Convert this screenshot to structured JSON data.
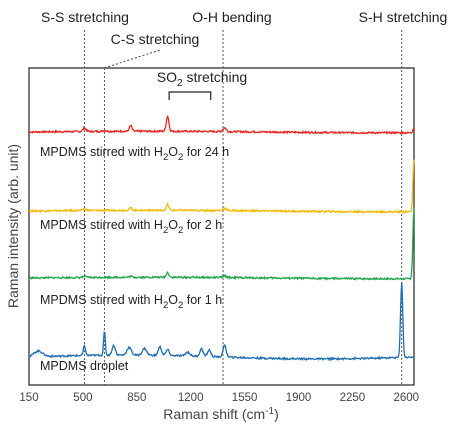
{
  "chart_data": {
    "type": "line",
    "xlabel_main": "Raman shift (cm",
    "xlabel_sup": "-1",
    "xlabel_end": ")",
    "ylabel": "Raman intensity (arb. unit)",
    "xlim": [
      150,
      2650
    ],
    "xticks": [
      "150",
      "500",
      "850",
      "1200",
      "1550",
      "1900",
      "2250",
      "2600"
    ],
    "xtick_values": [
      150,
      500,
      850,
      1200,
      1550,
      1900,
      2250,
      2600
    ],
    "annotations": [
      {
        "key": "ss",
        "text": "S-S stretching",
        "x": 510
      },
      {
        "key": "cs",
        "text": "C-S stretching",
        "x": 640
      },
      {
        "key": "oh",
        "text": "O-H bending",
        "x": 1410
      },
      {
        "key": "sh",
        "text": "S-H stretching",
        "x": 2570
      }
    ],
    "so2": {
      "main": "SO",
      "sub": "2",
      "end": " stretching",
      "range": [
        1060,
        1330
      ]
    },
    "series": [
      {
        "key": "h24",
        "label_main": "MPDMS stirred with H",
        "label_sub": "2",
        "label_mid": "O",
        "label_sub2": "2",
        "label_end": " for 24 h",
        "color": "#e8221e",
        "baseline": 0.13,
        "peaks": [
          [
            510,
            0.035,
            15
          ],
          [
            640,
            0.01,
            15
          ],
          [
            810,
            0.06,
            12
          ],
          [
            1050,
            0.16,
            12
          ],
          [
            1420,
            0.04,
            15
          ],
          [
            2650,
            0.05,
            10
          ]
        ]
      },
      {
        "key": "h2",
        "label_main": "MPDMS stirred with H",
        "label_sub": "2",
        "label_mid": "O",
        "label_sub2": "2",
        "label_end": " for 2 h",
        "color": "#f5b800",
        "baseline": 0.03,
        "peaks": [
          [
            510,
            0.015,
            15
          ],
          [
            810,
            0.025,
            12
          ],
          [
            1050,
            0.06,
            12
          ],
          [
            1420,
            0.025,
            15
          ],
          [
            2650,
            0.55,
            10
          ]
        ]
      },
      {
        "key": "h1",
        "label_main": "MPDMS stirred with H",
        "label_sub": "2",
        "label_mid": "O",
        "label_sub2": "2",
        "label_end": " for 1 h",
        "color": "#1fa54a",
        "baseline": 0.02,
        "peaks": [
          [
            510,
            0.01,
            15
          ],
          [
            810,
            0.01,
            12
          ],
          [
            1050,
            0.05,
            12
          ],
          [
            1420,
            0.02,
            15
          ],
          [
            2650,
            0.75,
            10
          ]
        ]
      },
      {
        "key": "drop",
        "label_main": "MPDMS droplet",
        "label_sub": "",
        "label_mid": "",
        "label_sub2": "",
        "label_end": "",
        "color": "#1f6fb4",
        "baseline": 0.12,
        "peaks": [
          [
            210,
            0.06,
            40
          ],
          [
            510,
            0.1,
            10
          ],
          [
            640,
            0.25,
            8
          ],
          [
            700,
            0.1,
            15
          ],
          [
            800,
            0.08,
            20
          ],
          [
            900,
            0.07,
            20
          ],
          [
            1000,
            0.09,
            15
          ],
          [
            1050,
            0.06,
            15
          ],
          [
            1180,
            0.04,
            20
          ],
          [
            1270,
            0.08,
            15
          ],
          [
            1320,
            0.07,
            15
          ],
          [
            1420,
            0.12,
            15
          ],
          [
            2570,
            0.8,
            10
          ]
        ]
      }
    ]
  }
}
